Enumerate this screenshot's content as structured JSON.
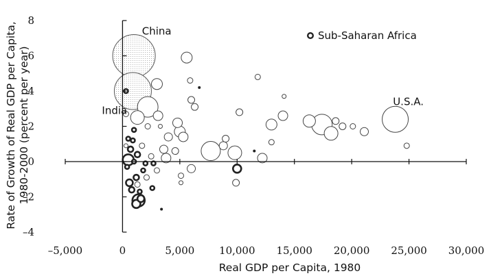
{
  "chart_data": {
    "type": "scatter",
    "title": "",
    "xlabel": "Real GDP per Capita, 1980",
    "ylabel_line1": "Rate of Growth of Real GDP per Capita,",
    "ylabel_line2": "1980-2000 (percent per year)",
    "xlim": [
      -5000,
      30000
    ],
    "ylim": [
      -4,
      8
    ],
    "xticks": [
      -5000,
      0,
      5000,
      10000,
      15000,
      20000,
      25000,
      30000
    ],
    "xtick_labels": [
      "–5,000",
      "0",
      "5,000",
      "10,000",
      "15,000",
      "20,000",
      "25,000",
      "30,000"
    ],
    "yticks": [
      -4,
      -2,
      0,
      2,
      4,
      6,
      8
    ],
    "ytick_labels": [
      "–4",
      "–2",
      "0",
      "2",
      "4",
      "6",
      "8"
    ],
    "grid": false,
    "bubble_size": "population",
    "legend": {
      "label": "Sub-Saharan Africa",
      "position": "top-right",
      "marker": "thick-outline circle"
    },
    "annotations": [
      {
        "text": "China",
        "x": 1700,
        "y": 7.2
      },
      {
        "text": "India",
        "x": -1800,
        "y": 2.7
      },
      {
        "text": "U.S.A.",
        "x": 23600,
        "y": 3.2
      }
    ],
    "points": [
      {
        "x": 1000,
        "y": 6.0,
        "r": 31,
        "country": "China",
        "fill": "dotted"
      },
      {
        "x": 900,
        "y": 4.0,
        "r": 27,
        "country": "India",
        "fill": "dotted"
      },
      {
        "x": 23800,
        "y": 2.4,
        "r": 19,
        "country": "U.S.A."
      },
      {
        "x": 2200,
        "y": 3.1,
        "r": 15
      },
      {
        "x": 7700,
        "y": 0.6,
        "r": 14
      },
      {
        "x": 17400,
        "y": 2.1,
        "r": 15
      },
      {
        "x": 18200,
        "y": 1.6,
        "r": 10
      },
      {
        "x": 16300,
        "y": 2.3,
        "r": 9
      },
      {
        "x": 1300,
        "y": 2.5,
        "r": 10
      },
      {
        "x": 9800,
        "y": 0.5,
        "r": 10
      },
      {
        "x": 5000,
        "y": 1.7,
        "r": 8
      },
      {
        "x": 5300,
        "y": 1.4,
        "r": 7
      },
      {
        "x": 5600,
        "y": 5.9,
        "r": 8
      },
      {
        "x": 3000,
        "y": 4.4,
        "r": 8
      },
      {
        "x": 3100,
        "y": 2.6,
        "r": 7
      },
      {
        "x": 13000,
        "y": 2.1,
        "r": 8
      },
      {
        "x": 4800,
        "y": 2.2,
        "r": 7
      },
      {
        "x": 12200,
        "y": 0.2,
        "r": 7
      },
      {
        "x": 14000,
        "y": 2.6,
        "r": 7
      },
      {
        "x": 18600,
        "y": 2.3,
        "r": 5
      },
      {
        "x": 19200,
        "y": 2.0,
        "r": 5
      },
      {
        "x": 21100,
        "y": 1.7,
        "r": 6
      },
      {
        "x": 20100,
        "y": 2.0,
        "r": 4
      },
      {
        "x": 10200,
        "y": 2.8,
        "r": 5
      },
      {
        "x": 6000,
        "y": 3.5,
        "r": 5
      },
      {
        "x": 6300,
        "y": 3.1,
        "r": 5
      },
      {
        "x": 5900,
        "y": 4.6,
        "r": 4
      },
      {
        "x": 9000,
        "y": 1.3,
        "r": 5
      },
      {
        "x": 8800,
        "y": 0.9,
        "r": 6
      },
      {
        "x": 13000,
        "y": 1.1,
        "r": 4
      },
      {
        "x": 11800,
        "y": 4.8,
        "r": 4
      },
      {
        "x": 24800,
        "y": 0.9,
        "r": 4
      },
      {
        "x": 14100,
        "y": 3.7,
        "r": 3
      },
      {
        "x": 4000,
        "y": 1.4,
        "r": 6
      },
      {
        "x": 3600,
        "y": 0.7,
        "r": 6
      },
      {
        "x": 3800,
        "y": 0.2,
        "r": 7
      },
      {
        "x": 6000,
        "y": -0.4,
        "r": 6
      },
      {
        "x": 4600,
        "y": 0.6,
        "r": 5
      },
      {
        "x": 9900,
        "y": -1.2,
        "r": 5
      },
      {
        "x": 2200,
        "y": 2.0,
        "r": 4
      },
      {
        "x": 1700,
        "y": 0.9,
        "r": 4
      },
      {
        "x": 2500,
        "y": 0.3,
        "r": 4
      },
      {
        "x": 1300,
        "y": -1.3,
        "r": 4
      },
      {
        "x": 2100,
        "y": -0.9,
        "r": 4
      },
      {
        "x": 3000,
        "y": -0.5,
        "r": 4
      },
      {
        "x": 5100,
        "y": -0.8,
        "r": 4
      },
      {
        "x": 5100,
        "y": -1.2,
        "r": 3
      },
      {
        "x": 300,
        "y": 2.7,
        "r": 4
      },
      {
        "x": 3300,
        "y": 2.0,
        "r": 3
      },
      {
        "x": 300,
        "y": 0.9,
        "r": 3
      },
      {
        "x": 6700,
        "y": 4.2,
        "r": 2,
        "filled": true
      },
      {
        "x": 11500,
        "y": 0.6,
        "r": 2,
        "filled": true
      },
      {
        "x": 3400,
        "y": -2.7,
        "r": 2,
        "filled": true
      },
      {
        "x": 500,
        "y": 0.1,
        "r": 8,
        "africa": true
      },
      {
        "x": 1400,
        "y": -2.2,
        "r": 9,
        "africa": true
      },
      {
        "x": 1200,
        "y": -2.4,
        "r": 6,
        "africa": true
      },
      {
        "x": 1600,
        "y": -2.1,
        "r": 5,
        "africa": true
      },
      {
        "x": 10000,
        "y": -0.4,
        "r": 6,
        "africa": true
      },
      {
        "x": 600,
        "y": -1.2,
        "r": 5,
        "africa": true
      },
      {
        "x": 1200,
        "y": -0.9,
        "r": 4,
        "africa": true
      },
      {
        "x": 700,
        "y": 0.7,
        "r": 4,
        "africa": true
      },
      {
        "x": 1300,
        "y": 0.4,
        "r": 4,
        "africa": true
      },
      {
        "x": 900,
        "y": 1.2,
        "r": 3,
        "africa": true
      },
      {
        "x": 500,
        "y": 1.3,
        "r": 3,
        "africa": true
      },
      {
        "x": 800,
        "y": -1.6,
        "r": 4,
        "africa": true
      },
      {
        "x": 1500,
        "y": -1.7,
        "r": 3,
        "africa": true
      },
      {
        "x": 300,
        "y": 4.0,
        "r": 3,
        "africa": true
      },
      {
        "x": 2000,
        "y": -0.1,
        "r": 3,
        "africa": true
      },
      {
        "x": 400,
        "y": -0.3,
        "r": 3,
        "africa": true
      },
      {
        "x": 1000,
        "y": 0.0,
        "r": 3,
        "africa": true
      },
      {
        "x": 2700,
        "y": -0.1,
        "r": 3,
        "africa": true
      },
      {
        "x": 2600,
        "y": -1.5,
        "r": 3,
        "africa": true
      },
      {
        "x": 1800,
        "y": -0.5,
        "r": 3,
        "africa": true
      },
      {
        "x": 1000,
        "y": 1.8,
        "r": 3,
        "africa": true
      }
    ]
  }
}
